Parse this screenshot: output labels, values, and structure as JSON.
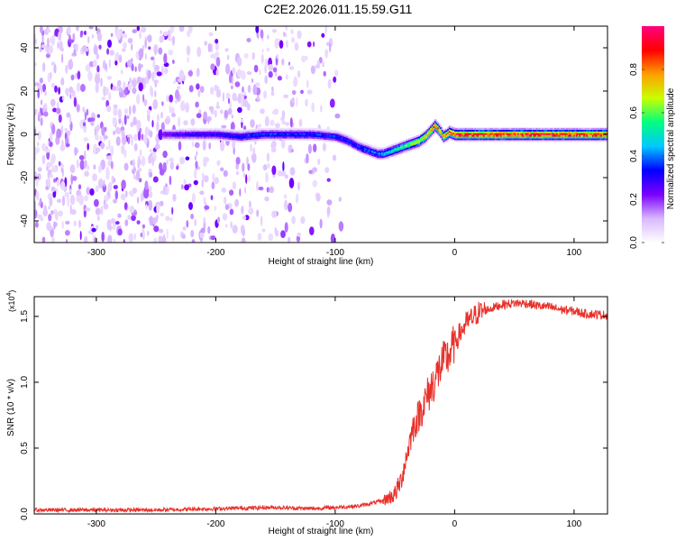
{
  "title": "C2E2.2026.011.15.59.G11",
  "chart_data": [
    {
      "type": "heatmap",
      "xlabel": "Height of straight line (km)",
      "ylabel": "Frequency (Hz)",
      "xlim": [
        -352,
        128
      ],
      "ylim": [
        -50,
        50
      ],
      "xticks": [
        -300,
        -200,
        -100,
        0,
        100
      ],
      "yticks": [
        -40,
        -20,
        0,
        20,
        40
      ],
      "colorbar": {
        "label": "Normalized spectral amplitude",
        "range": [
          0,
          1
        ],
        "ticks": [
          0.0,
          0.2,
          0.4,
          0.6,
          0.8
        ],
        "colors": [
          "#ffffff",
          "#d9b8ff",
          "#7a00ff",
          "#0000ff",
          "#00c8ff",
          "#00ff80",
          "#c8ff00",
          "#ffa000",
          "#ff0000",
          "#ff0080"
        ]
      },
      "ridge": {
        "x": [
          -240,
          -220,
          -200,
          -180,
          -160,
          -140,
          -120,
          -100,
          -90,
          -80,
          -75,
          -70,
          -65,
          -60,
          -55,
          -50,
          -45,
          -40,
          -35,
          -30,
          -25,
          -20,
          -17,
          -15,
          -12,
          -10,
          -7,
          -5,
          0,
          50,
          100,
          128
        ],
        "y": [
          0,
          0,
          0,
          -1,
          0,
          0,
          0,
          -1,
          -3,
          -6,
          -7,
          -8,
          -9,
          -9,
          -8,
          -7,
          -6,
          -5,
          -4,
          -3,
          -1,
          2,
          4,
          3,
          1,
          -1,
          0,
          1,
          0,
          0,
          0,
          0
        ],
        "amplitude": [
          0.25,
          0.3,
          0.3,
          0.35,
          0.35,
          0.35,
          0.35,
          0.35,
          0.35,
          0.35,
          0.4,
          0.4,
          0.4,
          0.45,
          0.5,
          0.55,
          0.55,
          0.6,
          0.65,
          0.7,
          0.75,
          0.8,
          0.85,
          0.8,
          0.75,
          0.75,
          0.8,
          0.85,
          0.9,
          0.9,
          0.9,
          0.9
        ]
      },
      "grid": false
    },
    {
      "type": "line",
      "xlabel": "Height of straight line (km)",
      "ylabel": "SNR (10 * v/v)",
      "scale_label": "(x10",
      "scale_exp": "4",
      "xlim": [
        -352,
        128
      ],
      "ylim": [
        0,
        1.65
      ],
      "xticks": [
        -300,
        -200,
        -100,
        0,
        100
      ],
      "yticks": [
        0.0,
        0.5,
        1.0,
        1.5
      ],
      "ytick_labels": [
        "0.0",
        "0.5",
        "1.0",
        "1.5"
      ],
      "series": [
        {
          "color": "#e8302a",
          "x": [
            -352,
            -300,
            -250,
            -200,
            -150,
            -120,
            -100,
            -80,
            -60,
            -50,
            -45,
            -40,
            -35,
            -30,
            -25,
            -20,
            -15,
            -10,
            -5,
            0,
            5,
            10,
            20,
            30,
            40,
            50,
            60,
            70,
            80,
            90,
            100,
            110,
            128
          ],
          "y": [
            0.03,
            0.03,
            0.03,
            0.04,
            0.05,
            0.04,
            0.05,
            0.06,
            0.1,
            0.15,
            0.25,
            0.45,
            0.65,
            0.75,
            0.85,
            0.95,
            1.05,
            1.15,
            1.2,
            1.3,
            1.38,
            1.45,
            1.53,
            1.56,
            1.59,
            1.6,
            1.6,
            1.58,
            1.57,
            1.55,
            1.54,
            1.52,
            1.51
          ]
        }
      ],
      "grid": false
    }
  ]
}
